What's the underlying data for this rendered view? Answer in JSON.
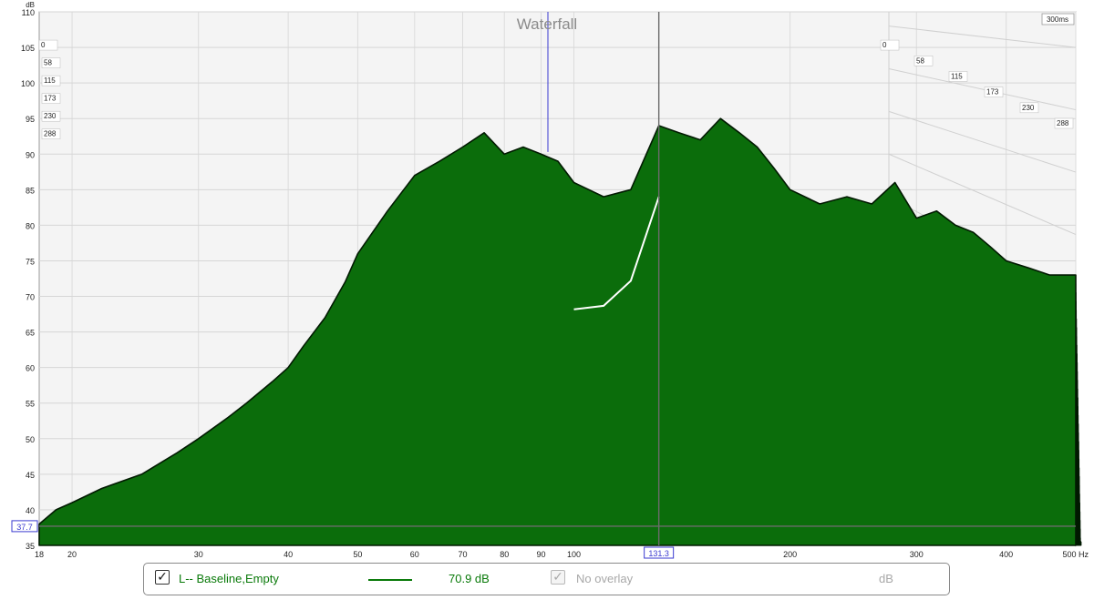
{
  "chart_data": {
    "type": "area",
    "title": "Waterfall",
    "y_unit_label": "dB",
    "x_unit_label": "Hz",
    "xlim": [
      18,
      500
    ],
    "x_scale": "log",
    "ylim": [
      35,
      110
    ],
    "x_ticks": [
      18,
      20,
      30,
      40,
      50,
      60,
      70,
      80,
      90,
      100,
      200,
      300,
      400,
      500
    ],
    "x_tick_labels": [
      "18",
      "20",
      "30",
      "40",
      "50",
      "60",
      "70",
      "80",
      "90",
      "100",
      "200",
      "300",
      "400",
      "500 Hz"
    ],
    "y_ticks": [
      35,
      40,
      45,
      50,
      55,
      60,
      65,
      70,
      75,
      80,
      85,
      90,
      95,
      100,
      105,
      110
    ],
    "time_slices_ms": [
      "0",
      "58",
      "115",
      "173",
      "230",
      "288"
    ],
    "time_end_label": "300ms",
    "cursor": {
      "x_label": "131.3",
      "y_label": "37.7"
    },
    "marker_blue_x": 92,
    "front_slice": {
      "x": [
        18,
        19,
        20,
        22,
        25,
        28,
        30,
        33,
        35,
        38,
        40,
        42,
        45,
        48,
        50,
        55,
        60,
        65,
        70,
        75,
        80,
        85,
        90,
        95,
        100,
        110,
        120,
        131.3,
        140,
        150,
        160,
        170,
        180,
        190,
        200,
        220,
        240,
        260,
        280,
        300,
        320,
        340,
        360,
        380,
        400,
        430,
        460,
        500
      ],
      "y": [
        38,
        40,
        41,
        43,
        45,
        48,
        50,
        53,
        55,
        58,
        60,
        63,
        67,
        72,
        76,
        82,
        87,
        89,
        91,
        93,
        90,
        91,
        90,
        89,
        86,
        84,
        85,
        94,
        93,
        92,
        95,
        93,
        91,
        88,
        85,
        83,
        84,
        83,
        86,
        81,
        82,
        80,
        79,
        77,
        75,
        74,
        73,
        73
      ]
    },
    "series": [
      {
        "name": "L-- Baseline,Empty",
        "color": "#0a7a0a",
        "cursor_value_label": "70.9 dB"
      }
    ]
  },
  "legend": {
    "entries": [
      {
        "label": "L-- Baseline,Empty",
        "value": "70.9 dB",
        "checked": true
      },
      {
        "label": "No overlay",
        "checked": true,
        "disabled": true
      }
    ],
    "unit": "dB"
  }
}
